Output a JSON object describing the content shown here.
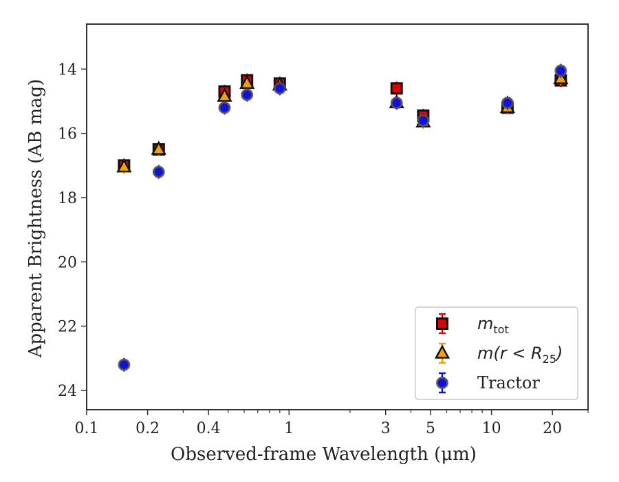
{
  "chart_data": {
    "type": "scatter",
    "xlabel": "Observed-frame Wavelength (μm)",
    "ylabel": "Apparent Brightness (AB mag)",
    "x_scale": "log",
    "xlim": [
      0.1,
      30
    ],
    "ylim": [
      24.6,
      12.6
    ],
    "y_inverted": true,
    "xticks": [
      {
        "v": 0.1,
        "label": "0.1"
      },
      {
        "v": 0.2,
        "label": "0.2"
      },
      {
        "v": 0.4,
        "label": "0.4"
      },
      {
        "v": 1,
        "label": "1"
      },
      {
        "v": 3,
        "label": "3"
      },
      {
        "v": 5,
        "label": "5"
      },
      {
        "v": 10,
        "label": "10"
      },
      {
        "v": 20,
        "label": "20"
      }
    ],
    "yticks": [
      {
        "v": 14,
        "label": "14"
      },
      {
        "v": 16,
        "label": "16"
      },
      {
        "v": 18,
        "label": "18"
      },
      {
        "v": 20,
        "label": "20"
      },
      {
        "v": 22,
        "label": "22"
      },
      {
        "v": 24,
        "label": "24"
      }
    ],
    "grid": false,
    "legend_position": "lower-right",
    "series": [
      {
        "name": "m_tot",
        "marker": "square",
        "color": "#e00000",
        "edge": "#111111",
        "points": [
          {
            "x": 0.153,
            "y": 17.0
          },
          {
            "x": 0.227,
            "y": 16.5
          },
          {
            "x": 0.48,
            "y": 14.7
          },
          {
            "x": 0.62,
            "y": 14.35
          },
          {
            "x": 0.9,
            "y": 14.45
          },
          {
            "x": 3.4,
            "y": 14.6
          },
          {
            "x": 4.6,
            "y": 15.45
          },
          {
            "x": 12.0,
            "y": 15.2
          },
          {
            "x": 22.0,
            "y": 14.35
          }
        ]
      },
      {
        "name": "m(r<R25)",
        "marker": "triangle",
        "color": "#f0a000",
        "edge": "#111111",
        "points": [
          {
            "x": 0.153,
            "y": 17.05
          },
          {
            "x": 0.227,
            "y": 16.5
          },
          {
            "x": 0.48,
            "y": 14.85
          },
          {
            "x": 0.62,
            "y": 14.45
          },
          {
            "x": 0.9,
            "y": 14.5
          },
          {
            "x": 3.4,
            "y": 15.05
          },
          {
            "x": 4.6,
            "y": 15.65
          },
          {
            "x": 12.0,
            "y": 15.2
          },
          {
            "x": 22.0,
            "y": 14.3
          }
        ]
      },
      {
        "name": "Tractor",
        "marker": "circle",
        "color": "#1010e0",
        "edge": "#555555",
        "points": [
          {
            "x": 0.153,
            "y": 23.2
          },
          {
            "x": 0.227,
            "y": 17.2
          },
          {
            "x": 0.48,
            "y": 15.2
          },
          {
            "x": 0.62,
            "y": 14.8
          },
          {
            "x": 0.9,
            "y": 14.6
          },
          {
            "x": 3.4,
            "y": 15.05
          },
          {
            "x": 4.6,
            "y": 15.6
          },
          {
            "x": 12.0,
            "y": 15.05
          },
          {
            "x": 22.0,
            "y": 14.05
          }
        ]
      }
    ]
  },
  "legend": {
    "items": [
      {
        "main": "m",
        "sub": "tot",
        "suffix": ""
      },
      {
        "main": "m(r < R",
        "sub": "25",
        "suffix": ")"
      },
      {
        "main": "Tractor",
        "sub": "",
        "suffix": ""
      }
    ]
  }
}
